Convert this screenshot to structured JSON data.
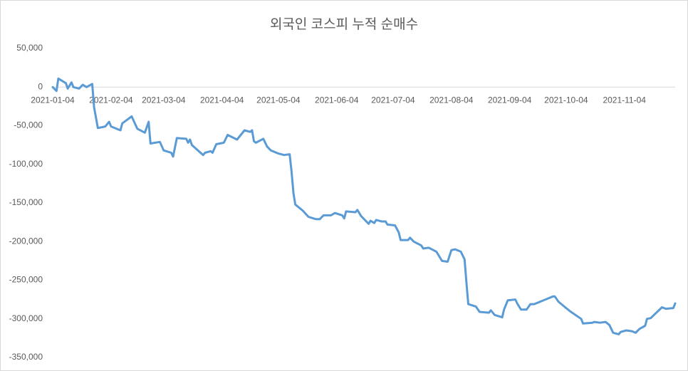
{
  "chart_data": {
    "type": "line",
    "title": "외국인 코스피 누적 순매수",
    "color": "#5b9bd5",
    "grid": false,
    "x": [
      "2021-01-04",
      "2021-01-06",
      "2021-01-07",
      "2021-01-11",
      "2021-01-12",
      "2021-01-14",
      "2021-01-15",
      "2021-01-18",
      "2021-01-20",
      "2021-01-22",
      "2021-01-25",
      "2021-01-26",
      "2021-01-28",
      "2021-02-01",
      "2021-02-03",
      "2021-02-04",
      "2021-02-09",
      "2021-02-10",
      "2021-02-15",
      "2021-02-18",
      "2021-02-22",
      "2021-02-24",
      "2021-02-25",
      "2021-03-02",
      "2021-03-04",
      "2021-03-08",
      "2021-03-09",
      "2021-03-11",
      "2021-03-16",
      "2021-03-17",
      "2021-03-18",
      "2021-03-19",
      "2021-03-25",
      "2021-03-26",
      "2021-03-29",
      "2021-03-30",
      "2021-04-01",
      "2021-04-05",
      "2021-04-07",
      "2021-04-12",
      "2021-04-16",
      "2021-04-19",
      "2021-04-20",
      "2021-04-21",
      "2021-04-22",
      "2021-04-26",
      "2021-04-28",
      "2021-04-30",
      "2021-05-04",
      "2021-05-07",
      "2021-05-10",
      "2021-05-11",
      "2021-05-12",
      "2021-05-13",
      "2021-05-17",
      "2021-05-20",
      "2021-05-24",
      "2021-05-26",
      "2021-05-28",
      "2021-06-01",
      "2021-06-03",
      "2021-06-07",
      "2021-06-08",
      "2021-06-09",
      "2021-06-14",
      "2021-06-15",
      "2021-06-17",
      "2021-06-21",
      "2021-06-22",
      "2021-06-24",
      "2021-06-25",
      "2021-06-28",
      "2021-06-30",
      "2021-07-01",
      "2021-07-05",
      "2021-07-07",
      "2021-07-08",
      "2021-07-12",
      "2021-07-13",
      "2021-07-15",
      "2021-07-19",
      "2021-07-20",
      "2021-07-23",
      "2021-07-27",
      "2021-07-30",
      "2021-08-02",
      "2021-08-04",
      "2021-08-06",
      "2021-08-09",
      "2021-08-11",
      "2021-08-12",
      "2021-08-13",
      "2021-08-17",
      "2021-08-19",
      "2021-08-24",
      "2021-08-25",
      "2021-08-27",
      "2021-08-31",
      "2021-09-01",
      "2021-09-03",
      "2021-09-07",
      "2021-09-08",
      "2021-09-10",
      "2021-09-13",
      "2021-09-15",
      "2021-09-17",
      "2021-09-27",
      "2021-09-28",
      "2021-09-30",
      "2021-10-06",
      "2021-10-12",
      "2021-10-13",
      "2021-10-18",
      "2021-10-19",
      "2021-10-22",
      "2021-10-25",
      "2021-10-27",
      "2021-10-29",
      "2021-11-01",
      "2021-11-02",
      "2021-11-05",
      "2021-11-08",
      "2021-11-10",
      "2021-11-12",
      "2021-11-15",
      "2021-11-16",
      "2021-11-18",
      "2021-11-24",
      "2021-11-26",
      "2021-11-30",
      "2021-12-01"
    ],
    "values": [
      0,
      -5000,
      11000,
      5000,
      -2000,
      6000,
      0,
      -2000,
      3000,
      0,
      4000,
      -26000,
      -53000,
      -51000,
      -45000,
      -51000,
      -56000,
      -47000,
      -38000,
      -54000,
      -59000,
      -45000,
      -73000,
      -71000,
      -82000,
      -85000,
      -90000,
      -66000,
      -67000,
      -72000,
      -68000,
      -75000,
      -88000,
      -85000,
      -83000,
      -85000,
      -74000,
      -72000,
      -62000,
      -68000,
      -56000,
      -58000,
      -56000,
      -70000,
      -72000,
      -67000,
      -77000,
      -82000,
      -86000,
      -88000,
      -87000,
      -109000,
      -137000,
      -152000,
      -160000,
      -168000,
      -171000,
      -171000,
      -166000,
      -166000,
      -163000,
      -166000,
      -170000,
      -161000,
      -162000,
      -159000,
      -167000,
      -177000,
      -173000,
      -176000,
      -172000,
      -174000,
      -174000,
      -178000,
      -179000,
      -188000,
      -198000,
      -198000,
      -195000,
      -200000,
      -205000,
      -209000,
      -208000,
      -213000,
      -225000,
      -226000,
      -211000,
      -210000,
      -213000,
      -223000,
      -253000,
      -281000,
      -284000,
      -291000,
      -292000,
      -289000,
      -295000,
      -298000,
      -288000,
      -276000,
      -275000,
      -280000,
      -288000,
      -288000,
      -281000,
      -281000,
      -271000,
      -271000,
      -278000,
      -290000,
      -300000,
      -306000,
      -305000,
      -304000,
      -305000,
      -304000,
      -308000,
      -318000,
      -320000,
      -317000,
      -315000,
      -316000,
      -318000,
      -313000,
      -309000,
      -300000,
      -299000,
      -285000,
      -287000,
      -286000,
      -280000
    ],
    "xlim": [
      "2021-01-04",
      "2021-12-01"
    ],
    "xticks": [
      "2021-01-04",
      "2021-02-04",
      "2021-03-04",
      "2021-04-04",
      "2021-05-04",
      "2021-06-04",
      "2021-07-04",
      "2021-08-04",
      "2021-09-04",
      "2021-10-04",
      "2021-11-04"
    ],
    "ylim": [
      -350000,
      50000
    ],
    "yticks": [
      {
        "value": 50000,
        "label": "50,000"
      },
      0,
      {
        "value": -50000,
        "label": "-50,000"
      },
      {
        "value": -100000,
        "label": "-100,000"
      },
      {
        "value": -150000,
        "label": "-150,000"
      },
      {
        "value": -200000,
        "label": "-200,000"
      },
      {
        "value": -250000,
        "label": "-250,000"
      },
      {
        "value": -300000,
        "label": "-300,000"
      },
      {
        "value": -350000,
        "label": "-350,000"
      }
    ]
  }
}
